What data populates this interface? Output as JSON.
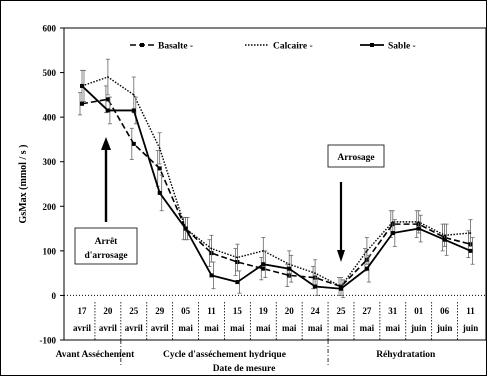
{
  "chart_data": {
    "type": "line",
    "title": "",
    "ylabel": "GsMax (mmol / s )",
    "xlabel": "Date de mesure",
    "ylim": [
      -100,
      600
    ],
    "yticks": [
      -100,
      0,
      100,
      200,
      300,
      400,
      500,
      600
    ],
    "grid": false,
    "legend_position": "top",
    "x_tick_labels": [
      [
        "17",
        "avril"
      ],
      [
        "20",
        "avril"
      ],
      [
        "25",
        "avril"
      ],
      [
        "29",
        "avril"
      ],
      [
        "05",
        "mai"
      ],
      [
        "11",
        "mai"
      ],
      [
        "15",
        "mai"
      ],
      [
        "19",
        "mai"
      ],
      [
        "20",
        "mai"
      ],
      [
        "24",
        "mai"
      ],
      [
        "25",
        "mai"
      ],
      [
        "27",
        "mai"
      ],
      [
        "31",
        "mai"
      ],
      [
        "01",
        "juin"
      ],
      [
        "06",
        "juin"
      ],
      [
        "11",
        "juin"
      ]
    ],
    "phases": [
      {
        "label": "Avant Asséchement",
        "from": 0,
        "to": 1
      },
      {
        "label": "Cycle d'asséchement hydrique",
        "from": 2,
        "to": 9
      },
      {
        "label": "Réhydratation",
        "from": 10,
        "to": 15
      }
    ],
    "series": [
      {
        "name": "Basalte",
        "legend_label": "Basalte -",
        "style": "dashed-square",
        "values": [
          430,
          440,
          340,
          285,
          150,
          95,
          75,
          60,
          45,
          40,
          20,
          80,
          160,
          160,
          130,
          115
        ],
        "errors": [
          25,
          30,
          35,
          40,
          25,
          30,
          30,
          25,
          25,
          25,
          20,
          25,
          30,
          30,
          30,
          30
        ]
      },
      {
        "name": "Calcaire",
        "legend_label": "Calcaire -",
        "style": "dotted",
        "values": [
          470,
          490,
          450,
          330,
          150,
          105,
          85,
          100,
          70,
          50,
          20,
          100,
          165,
          165,
          135,
          140
        ],
        "errors": [
          35,
          40,
          40,
          35,
          25,
          30,
          30,
          30,
          30,
          30,
          20,
          30,
          25,
          25,
          25,
          30
        ]
      },
      {
        "name": "Sable",
        "legend_label": "Sable -",
        "style": "solid-square",
        "values": [
          470,
          415,
          415,
          230,
          150,
          45,
          30,
          70,
          60,
          20,
          15,
          60,
          140,
          150,
          125,
          100
        ],
        "errors": [
          35,
          30,
          30,
          40,
          25,
          30,
          25,
          30,
          30,
          20,
          20,
          30,
          30,
          30,
          35,
          30
        ]
      }
    ],
    "annotations": [
      {
        "text": "Arrosage",
        "series_point": 10,
        "direction": "down"
      },
      {
        "text": "Arrêt d'arrosage",
        "series_point": 1,
        "direction": "up",
        "lines": [
          "Arrêt",
          "d'arrosage"
        ]
      }
    ]
  }
}
